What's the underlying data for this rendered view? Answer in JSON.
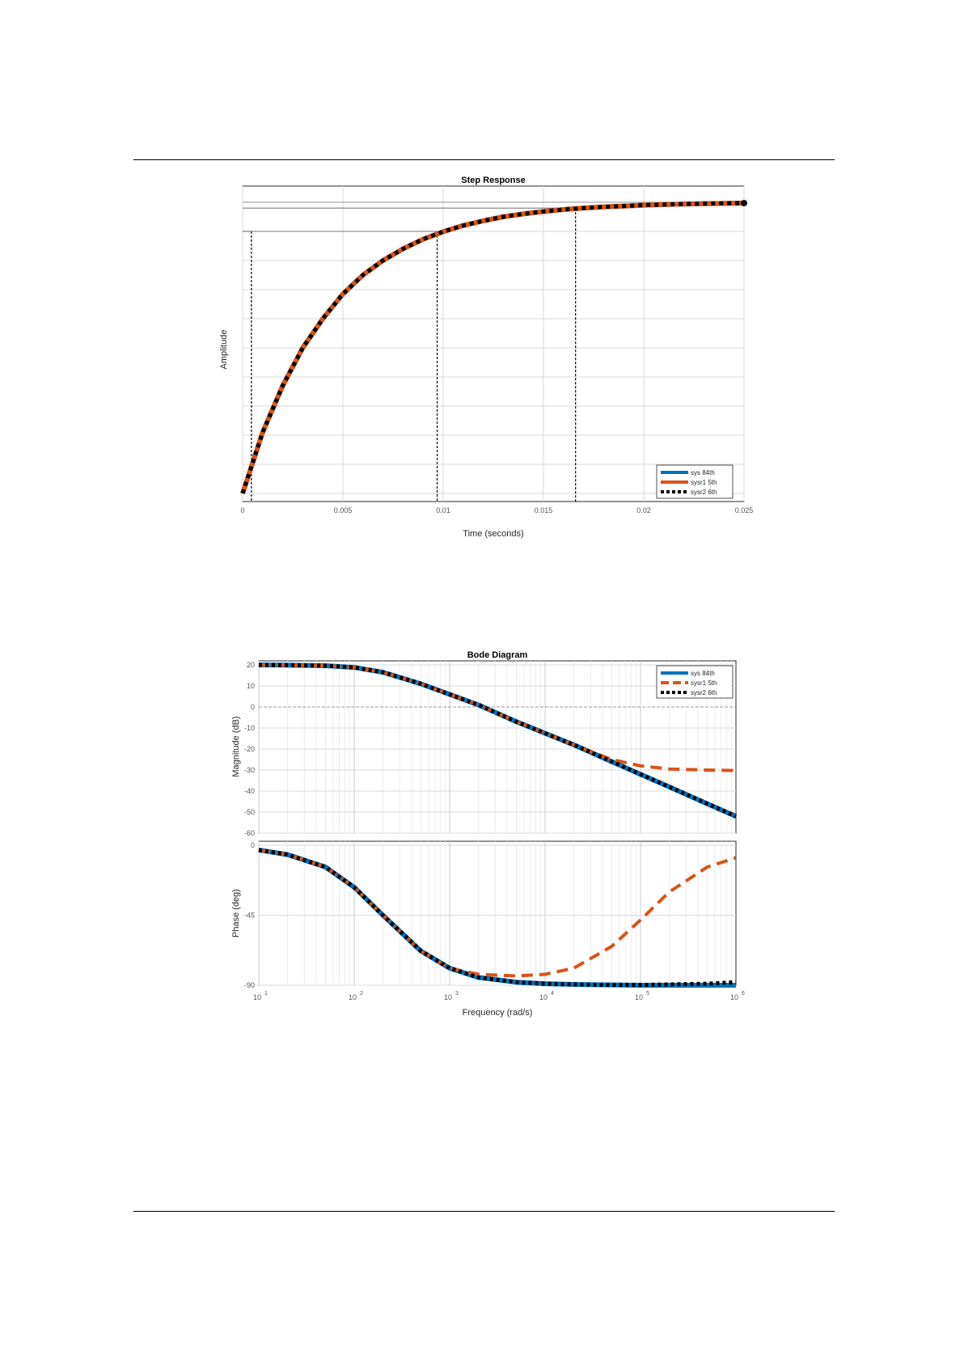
{
  "colors": {
    "sys": "#0072BD",
    "sysr1": "#D95319",
    "sysr2": "#000000",
    "grid": "#d9d9d9",
    "axis": "#262626"
  },
  "chart_data": [
    {
      "type": "line",
      "title": "Step Response",
      "xlabel": "Time (seconds)",
      "ylabel": "Amplitude",
      "xlim": [
        0,
        0.025
      ],
      "ylim": [
        0,
        1
      ],
      "grid": true,
      "legend": "bottom-right",
      "xticks": [
        0,
        0.005,
        0.01,
        0.015,
        0.02,
        0.025
      ],
      "xtick_labels": [
        "0",
        "0.005",
        "0.01",
        "0.015",
        "0.02",
        "0.025"
      ],
      "yticks": [
        0,
        0.1,
        0.2,
        0.3,
        0.4,
        0.5,
        0.6,
        0.7,
        0.8,
        0.9,
        1.0
      ],
      "ytick_labels": [],
      "characteristic_lines": [
        {
          "t": 0.00044,
          "y": 0.9
        },
        {
          "t": 0.0097,
          "y": 0.9
        },
        {
          "t": 0.0166,
          "y": 0.98
        }
      ],
      "series": [
        {
          "name": "sys 84th",
          "style": "solid",
          "color": "#0072BD",
          "x": [
            0,
            0.001,
            0.002,
            0.003,
            0.004,
            0.005,
            0.006,
            0.007,
            0.008,
            0.009,
            0.01,
            0.011,
            0.012,
            0.013,
            0.014,
            0.015,
            0.016,
            0.017,
            0.018,
            0.019,
            0.02,
            0.021,
            0.022,
            0.023,
            0.024,
            0.025
          ],
          "values": [
            0,
            0.21,
            0.37,
            0.5,
            0.6,
            0.685,
            0.75,
            0.8,
            0.84,
            0.873,
            0.899,
            0.92,
            0.936,
            0.95,
            0.96,
            0.968,
            0.975,
            0.98,
            0.984,
            0.987,
            0.99,
            0.992,
            0.994,
            0.995,
            0.996,
            0.997
          ]
        },
        {
          "name": "sysr1 5th",
          "style": "solid",
          "color": "#D95319",
          "x": [
            0,
            0.001,
            0.002,
            0.003,
            0.004,
            0.005,
            0.006,
            0.007,
            0.008,
            0.009,
            0.01,
            0.011,
            0.012,
            0.013,
            0.014,
            0.015,
            0.016,
            0.017,
            0.018,
            0.019,
            0.02,
            0.021,
            0.022,
            0.023,
            0.024,
            0.025
          ],
          "values": [
            0,
            0.21,
            0.37,
            0.5,
            0.6,
            0.685,
            0.75,
            0.8,
            0.84,
            0.873,
            0.899,
            0.92,
            0.936,
            0.95,
            0.96,
            0.968,
            0.975,
            0.98,
            0.984,
            0.987,
            0.99,
            0.992,
            0.994,
            0.995,
            0.996,
            0.997
          ]
        },
        {
          "name": "sysr2 6th",
          "style": "dotted",
          "color": "#000000",
          "x": [
            0,
            0.001,
            0.002,
            0.003,
            0.004,
            0.005,
            0.006,
            0.007,
            0.008,
            0.009,
            0.01,
            0.011,
            0.012,
            0.013,
            0.014,
            0.015,
            0.016,
            0.017,
            0.018,
            0.019,
            0.02,
            0.021,
            0.022,
            0.023,
            0.024,
            0.025
          ],
          "values": [
            0,
            0.21,
            0.37,
            0.5,
            0.6,
            0.685,
            0.75,
            0.8,
            0.84,
            0.873,
            0.899,
            0.92,
            0.936,
            0.95,
            0.96,
            0.968,
            0.975,
            0.98,
            0.984,
            0.987,
            0.99,
            0.992,
            0.994,
            0.995,
            0.996,
            0.997
          ]
        }
      ]
    },
    {
      "type": "line",
      "title": "Bode Diagram",
      "xlabel": "Frequency (rad/s)",
      "xscale": "log",
      "xlim": [
        10,
        1000000
      ],
      "xtick_exponents": [
        "1",
        "2",
        "3",
        "4",
        "5",
        "6"
      ],
      "grid": true,
      "legend": "top-right",
      "panels": [
        {
          "name": "magnitude",
          "ylabel": "Magnitude (dB)",
          "ylim": [
            -60,
            20
          ],
          "yticks": [
            -60,
            -50,
            -40,
            -30,
            -20,
            -10,
            0,
            10,
            20
          ],
          "ytick_labels": [
            "-60",
            "-50",
            "-40",
            "-30",
            "-20",
            "-10",
            "0",
            "10",
            "20"
          ],
          "series": [
            {
              "name": "sys 84th",
              "style": "solid",
              "color": "#0072BD",
              "x": [
                10,
                20,
                50,
                100,
                200,
                500,
                1000,
                2000,
                5000,
                10000,
                20000,
                50000,
                100000,
                200000,
                500000,
                1000000
              ],
              "values": [
                20,
                19.9,
                19.6,
                18.8,
                16.5,
                11,
                6,
                1,
                -7,
                -12.5,
                -18,
                -26,
                -32,
                -38,
                -46,
                -52
              ]
            },
            {
              "name": "sysr1 5th",
              "style": "dashed",
              "color": "#D95319",
              "x": [
                10,
                20,
                50,
                100,
                200,
                500,
                1000,
                2000,
                5000,
                10000,
                20000,
                50000,
                100000,
                200000,
                500000,
                1000000
              ],
              "values": [
                20,
                19.9,
                19.6,
                18.8,
                16.5,
                11,
                6,
                1,
                -7,
                -12.5,
                -18,
                -25,
                -28,
                -29.5,
                -30,
                -30.2
              ]
            },
            {
              "name": "sysr2 6th",
              "style": "dotted",
              "color": "#000000",
              "x": [
                10,
                20,
                50,
                100,
                200,
                500,
                1000,
                2000,
                5000,
                10000,
                20000,
                50000,
                100000,
                200000,
                500000,
                1000000
              ],
              "values": [
                20,
                19.9,
                19.6,
                18.8,
                16.5,
                11,
                6,
                1,
                -7,
                -12.5,
                -18,
                -26,
                -32,
                -38,
                -46,
                -52
              ]
            }
          ]
        },
        {
          "name": "phase",
          "ylabel": "Phase (deg)",
          "ylim": [
            -90,
            0
          ],
          "yticks": [
            -90,
            -45,
            0
          ],
          "ytick_labels": [
            "-90",
            "-45",
            "0"
          ],
          "series": [
            {
              "name": "sys 84th",
              "style": "solid",
              "color": "#0072BD",
              "x": [
                10,
                20,
                50,
                100,
                200,
                500,
                1000,
                2000,
                5000,
                10000,
                20000,
                50000,
                100000,
                200000,
                500000,
                1000000
              ],
              "values": [
                -3,
                -6,
                -14,
                -27,
                -45,
                -68,
                -79,
                -85,
                -88,
                -89,
                -89.5,
                -89.8,
                -90,
                -90,
                -90,
                -90
              ]
            },
            {
              "name": "sysr1 5th",
              "style": "dashed",
              "color": "#D95319",
              "x": [
                10,
                20,
                50,
                100,
                200,
                500,
                1000,
                2000,
                5000,
                10000,
                20000,
                50000,
                100000,
                200000,
                500000,
                1000000
              ],
              "values": [
                -3,
                -6,
                -14,
                -27,
                -45,
                -68,
                -79,
                -83,
                -84,
                -83,
                -79,
                -65,
                -48,
                -30,
                -14,
                -8
              ]
            },
            {
              "name": "sysr2 6th",
              "style": "dotted",
              "color": "#000000",
              "x": [
                10,
                20,
                50,
                100,
                200,
                500,
                1000,
                2000,
                5000,
                10000,
                20000,
                50000,
                100000,
                200000,
                500000,
                1000000
              ],
              "values": [
                -3,
                -6,
                -14,
                -27,
                -45,
                -68,
                -79,
                -85,
                -88,
                -89,
                -89.5,
                -89.8,
                -89.8,
                -89.5,
                -89,
                -88
              ]
            }
          ]
        }
      ]
    }
  ]
}
